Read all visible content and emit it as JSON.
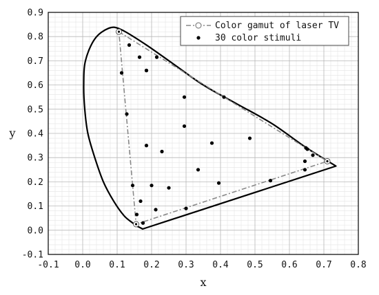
{
  "chart_data": {
    "type": "scatter",
    "xlabel": "x",
    "ylabel": "y",
    "xlim": [
      -0.1,
      0.8
    ],
    "ylim": [
      -0.1,
      0.9
    ],
    "xticks": [
      "-0.1",
      "0.0",
      "0.1",
      "0.2",
      "0.3",
      "0.4",
      "0.5",
      "0.6",
      "0.7",
      "0.8"
    ],
    "yticks": [
      "-0.1",
      "0.0",
      "0.1",
      "0.2",
      "0.3",
      "0.4",
      "0.5",
      "0.6",
      "0.7",
      "0.8",
      "0.9"
    ],
    "grid": true,
    "legend_position": "top-right",
    "spectral_locus": [
      [
        0.174,
        0.005
      ],
      [
        0.165,
        0.012
      ],
      [
        0.156,
        0.018
      ],
      [
        0.145,
        0.03
      ],
      [
        0.12,
        0.06
      ],
      [
        0.09,
        0.12
      ],
      [
        0.06,
        0.2
      ],
      [
        0.035,
        0.3
      ],
      [
        0.015,
        0.4
      ],
      [
        0.006,
        0.5
      ],
      [
        0.003,
        0.6
      ],
      [
        0.008,
        0.7
      ],
      [
        0.035,
        0.79
      ],
      [
        0.075,
        0.834
      ],
      [
        0.11,
        0.83
      ],
      [
        0.18,
        0.77
      ],
      [
        0.26,
        0.69
      ],
      [
        0.35,
        0.6
      ],
      [
        0.45,
        0.52
      ],
      [
        0.55,
        0.44
      ],
      [
        0.65,
        0.34
      ],
      [
        0.735,
        0.265
      ]
    ],
    "series": [
      {
        "name": "Color gamut of laser TV",
        "x": [
          0.105,
          0.71,
          0.155,
          0.105
        ],
        "y": [
          0.82,
          0.285,
          0.025,
          0.82
        ]
      },
      {
        "name": "30 color stimuli",
        "x": [
          0.135,
          0.165,
          0.113,
          0.128,
          0.145,
          0.157,
          0.168,
          0.175,
          0.185,
          0.185,
          0.2,
          0.212,
          0.215,
          0.23,
          0.25,
          0.295,
          0.295,
          0.3,
          0.335,
          0.375,
          0.395,
          0.41,
          0.485,
          0.545,
          0.645,
          0.645,
          0.648,
          0.652,
          0.668,
          0.185
        ],
        "y": [
          0.765,
          0.715,
          0.65,
          0.48,
          0.185,
          0.065,
          0.12,
          0.03,
          0.66,
          0.35,
          0.185,
          0.085,
          0.715,
          0.325,
          0.175,
          0.55,
          0.43,
          0.09,
          0.25,
          0.36,
          0.195,
          0.55,
          0.38,
          0.205,
          0.25,
          0.285,
          0.34,
          0.335,
          0.31,
          0.66
        ]
      }
    ]
  }
}
